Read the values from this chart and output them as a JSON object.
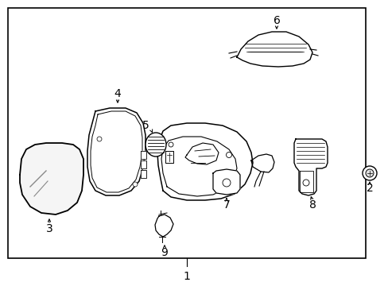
{
  "background_color": "#ffffff",
  "border_color": "#000000",
  "line_color": "#000000",
  "text_color": "#000000",
  "labels": [
    "1",
    "2",
    "3",
    "4",
    "5",
    "6",
    "7",
    "8",
    "9"
  ],
  "figsize": [
    4.89,
    3.6
  ],
  "dpi": 100
}
